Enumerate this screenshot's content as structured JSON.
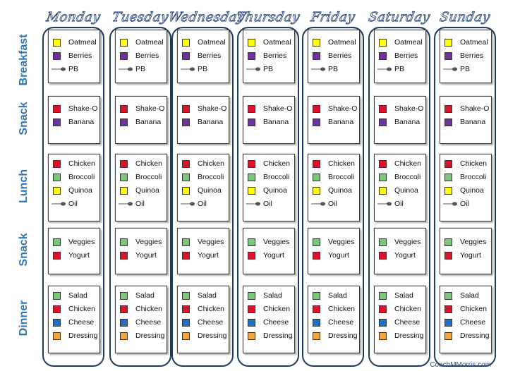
{
  "days": [
    "Monday",
    "Tuesday",
    "Wednesday",
    "Thursday",
    "Friday",
    "Saturday",
    "Sunday"
  ],
  "meals": [
    {
      "label": "Breakfast",
      "items": [
        {
          "name": "Oatmeal",
          "icon": "yellow-square-icon",
          "color": "#ffff00"
        },
        {
          "name": "Berries",
          "icon": "purple-square-icon",
          "color": "#7030a0"
        },
        {
          "name": "PB",
          "icon": "spoon-icon",
          "color": "#7f7f7f"
        }
      ]
    },
    {
      "label": "Snack",
      "items": [
        {
          "name": "Shake-O",
          "icon": "red-square-icon",
          "color": "#d9142b"
        },
        {
          "name": "Banana",
          "icon": "purple-square-icon",
          "color": "#7030a0"
        }
      ]
    },
    {
      "label": "Lunch",
      "items": [
        {
          "name": "Chicken",
          "icon": "red-square-icon",
          "color": "#d9142b"
        },
        {
          "name": "Broccoli",
          "icon": "green-square-icon",
          "color": "#7ac97a"
        },
        {
          "name": "Quinoa",
          "icon": "yellow-square-icon",
          "color": "#ffff00"
        },
        {
          "name": "Oil",
          "icon": "spoon-icon",
          "color": "#7f7f7f"
        }
      ]
    },
    {
      "label": "Snack",
      "items": [
        {
          "name": "Veggies",
          "icon": "green-square-icon",
          "color": "#7ac97a"
        },
        {
          "name": "Yogurt",
          "icon": "red-square-icon",
          "color": "#d9142b"
        }
      ]
    },
    {
      "label": "Dinner",
      "items": [
        {
          "name": "Salad",
          "icon": "green-square-icon",
          "color": "#7ac97a"
        },
        {
          "name": "Chicken",
          "icon": "red-square-icon",
          "color": "#d9142b"
        },
        {
          "name": "Cheese",
          "icon": "blue-square-icon",
          "color": "#1f6fc4"
        },
        {
          "name": "Dressing",
          "icon": "orange-square-icon",
          "color": "#f4a33c"
        }
      ]
    }
  ],
  "footer": "CoachMMorris.com"
}
